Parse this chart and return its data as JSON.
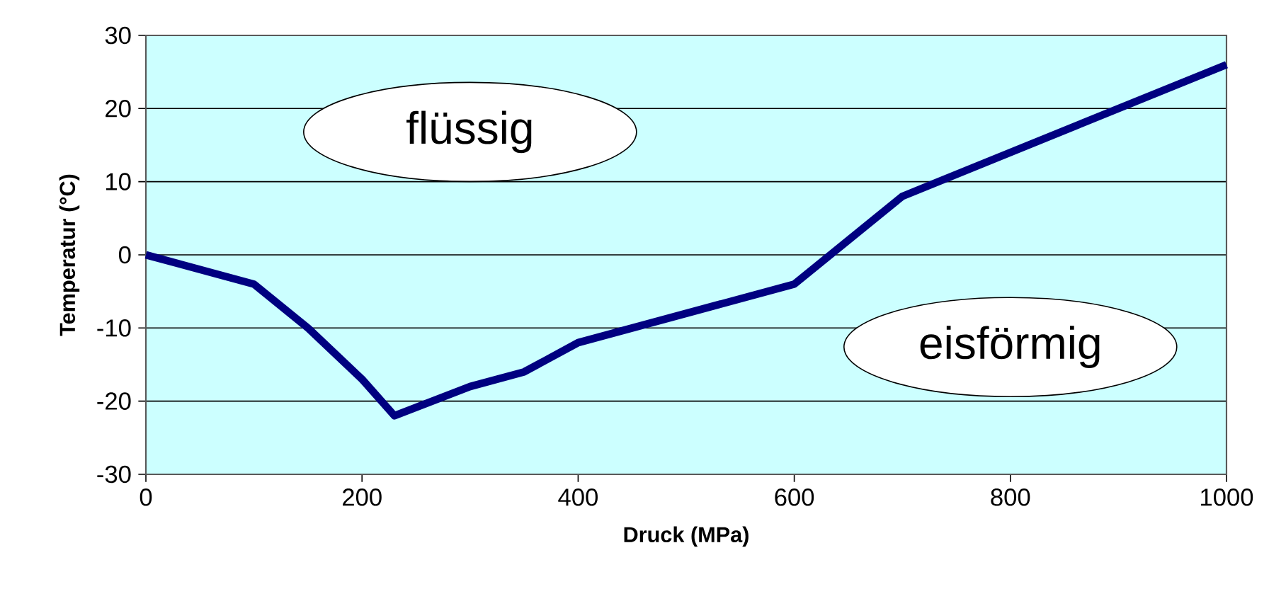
{
  "chart_data": {
    "type": "line",
    "xlabel": "Druck (MPa)",
    "ylabel": "Temperatur (°C)",
    "x": [
      0,
      100,
      150,
      200,
      230,
      300,
      350,
      400,
      500,
      600,
      650,
      700,
      1000
    ],
    "series": [
      {
        "color": "#000080",
        "values": [
          0,
          -4,
          -10,
          -17,
          -22,
          -18,
          -16,
          -12,
          -8,
          -4,
          2,
          8,
          26
        ]
      }
    ],
    "xlim": [
      0,
      1000
    ],
    "xticks": [
      0,
      200,
      400,
      600,
      800,
      1000
    ],
    "ylim": [
      -30,
      30
    ],
    "yticks": [
      -30,
      -20,
      -10,
      0,
      10,
      20,
      30
    ],
    "grid": "y",
    "legend": false,
    "marker": "none",
    "line_style": "solid",
    "annotations": [
      "flüssig",
      "eisförmig"
    ]
  }
}
